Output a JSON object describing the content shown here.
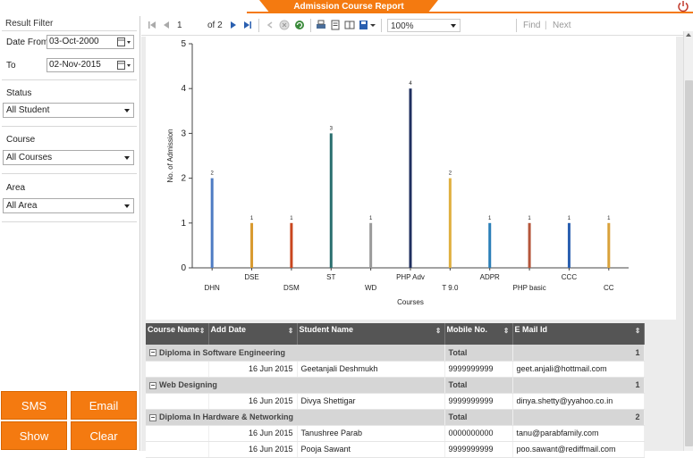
{
  "header": {
    "title": "Admission Course Report",
    "power_icon": "power-icon"
  },
  "filter": {
    "title": "Result Filter",
    "date_from_label": "Date From",
    "date_from_value": "03-Oct-2000",
    "date_to_label": "To",
    "date_to_value": "02-Nov-2015",
    "status_label": "Status",
    "status_value": "All Student",
    "course_label": "Course",
    "course_value": "All Courses",
    "area_label": "Area",
    "area_value": "All Area"
  },
  "actions": {
    "sms": "SMS",
    "email": "Email",
    "show": "Show",
    "clear": "Clear"
  },
  "toolbar": {
    "page_current": "1",
    "page_of": "of 2",
    "zoom": "100%",
    "find": "Find",
    "next": "Next"
  },
  "chart_data": {
    "type": "bar",
    "categories": [
      "DHN",
      "DSE",
      "DSM",
      "ST",
      "WD",
      "PHP Adv",
      "T 9.0",
      "ADPR",
      "PHP basic",
      "CCC",
      "CC"
    ],
    "values": [
      2,
      1,
      1,
      3,
      1,
      4,
      2,
      1,
      1,
      1,
      1
    ],
    "colors": [
      "#4f7cc4",
      "#d89a2e",
      "#c9461f",
      "#2a6f6f",
      "#9a9a9a",
      "#1f2f5f",
      "#e0b040",
      "#2b7fb8",
      "#b5563b",
      "#2a5fb0",
      "#d9a23a"
    ],
    "xlabel": "Courses",
    "ylabel": "No. of Admission",
    "ylim": [
      0,
      5
    ],
    "yticks": [
      0,
      1,
      2,
      3,
      4,
      5
    ]
  },
  "table": {
    "headers": [
      "Course Name",
      "Add Date",
      "Student Name",
      "Mobile No.",
      "E Mail Id"
    ],
    "total_label": "Total",
    "groups": [
      {
        "name": "Diploma in Software Engineering",
        "total": "1",
        "rows": [
          {
            "date": "16 Jun 2015",
            "student": "Geetanjali Deshmukh",
            "mobile": "9999999999",
            "email": "geet.anjali@hottmail.com"
          }
        ]
      },
      {
        "name": "Web Designing",
        "total": "1",
        "rows": [
          {
            "date": "16 Jun 2015",
            "student": "Divya Shettigar",
            "mobile": "9999999999",
            "email": "dinya.shetty@yyahoo.co.in"
          }
        ]
      },
      {
        "name": "Diploma In Hardware & Networking",
        "total": "2",
        "rows": [
          {
            "date": "16 Jun 2015",
            "student": "Tanushree Parab",
            "mobile": "0000000000",
            "email": "tanu@parabfamily.com"
          },
          {
            "date": "16 Jun 2015",
            "student": "Pooja Sawant",
            "mobile": "9999999999",
            "email": "poo.sawant@rediffmail.com"
          }
        ]
      }
    ]
  }
}
